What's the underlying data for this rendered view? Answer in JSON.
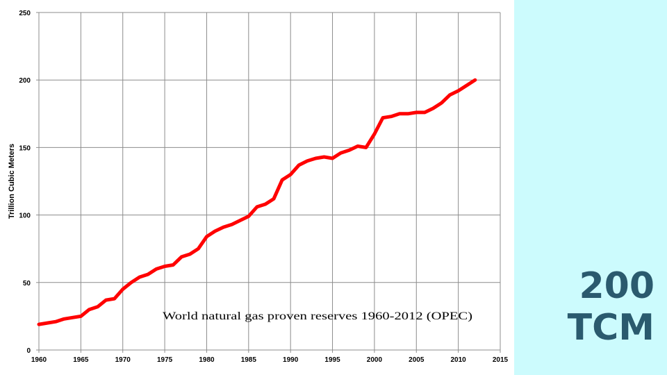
{
  "chart_data": {
    "type": "line",
    "title": "",
    "annotation": "World natural gas proven reserves 1960-2012 (OPEC)",
    "xlabel": "",
    "ylabel": "Trillion Cubic Meters",
    "xlim": [
      1960,
      2015
    ],
    "ylim": [
      0,
      250
    ],
    "x_ticks": [
      1960,
      1965,
      1970,
      1975,
      1980,
      1985,
      1990,
      1995,
      2000,
      2005,
      2010,
      2015
    ],
    "y_ticks": [
      0,
      50,
      100,
      150,
      200,
      250
    ],
    "grid": true,
    "legend": "none",
    "line_color": "#ff0000",
    "series": [
      {
        "x": [
          1960,
          1961,
          1962,
          1963,
          1964,
          1965,
          1966,
          1967,
          1968,
          1969,
          1970,
          1971,
          1972,
          1973,
          1974,
          1975,
          1976,
          1977,
          1978,
          1979,
          1980,
          1981,
          1982,
          1983,
          1984,
          1985,
          1986,
          1987,
          1988,
          1989,
          1990,
          1991,
          1992,
          1993,
          1994,
          1995,
          1996,
          1997,
          1998,
          1999,
          2000,
          2001,
          2002,
          2003,
          2004,
          2005,
          2006,
          2007,
          2008,
          2009,
          2010,
          2011,
          2012
        ],
        "y": [
          19,
          20,
          21,
          23,
          24,
          25,
          30,
          32,
          37,
          38,
          45,
          50,
          54,
          56,
          60,
          62,
          63,
          69,
          71,
          75,
          84,
          88,
          91,
          93,
          96,
          99,
          106,
          108,
          112,
          126,
          130,
          137,
          140,
          142,
          143,
          142,
          146,
          148,
          151,
          150,
          160,
          172,
          173,
          175,
          175,
          176,
          176,
          179,
          183,
          189,
          192,
          196,
          200
        ]
      }
    ]
  },
  "side_panel": {
    "line1": "200",
    "line2": "TCM",
    "background": "#ccfbfd",
    "accent": "#2a5a6e"
  }
}
